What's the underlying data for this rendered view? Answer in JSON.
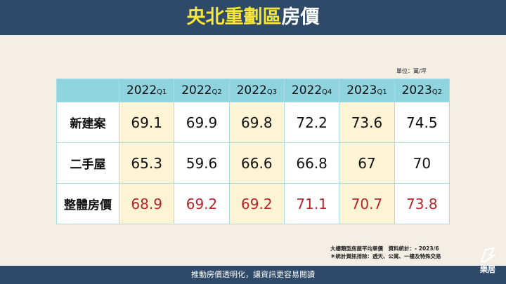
{
  "header": {
    "title_highlight": "央北重劃區",
    "title_rest": "房價"
  },
  "unit": "單位：萬/坪",
  "table": {
    "columns": [
      {
        "year": "2022",
        "quarter": "Q1"
      },
      {
        "year": "2022",
        "quarter": "Q2"
      },
      {
        "year": "2022",
        "quarter": "Q3"
      },
      {
        "year": "2022",
        "quarter": "Q4"
      },
      {
        "year": "2023",
        "quarter": "Q1"
      },
      {
        "year": "2023",
        "quarter": "Q2"
      }
    ],
    "rows": [
      {
        "label": "新建案",
        "values": [
          69.1,
          69.9,
          69.8,
          72.2,
          73.6,
          74.5
        ]
      },
      {
        "label": "二手屋",
        "values": [
          65.3,
          59.6,
          66.6,
          66.8,
          67,
          70
        ]
      },
      {
        "label": "整體房價",
        "values": [
          68.9,
          69.2,
          69.2,
          71.1,
          70.7,
          73.8
        ]
      }
    ]
  },
  "notes": [
    "大樓類型房屋平均單價　資料統計：- 2023/6",
    "＊統計資訊排除：透天、公寓、一樓及特殊交易"
  ],
  "footer": "推動房價透明化，讓資訊更容易閱讀",
  "logo": "樂居"
}
